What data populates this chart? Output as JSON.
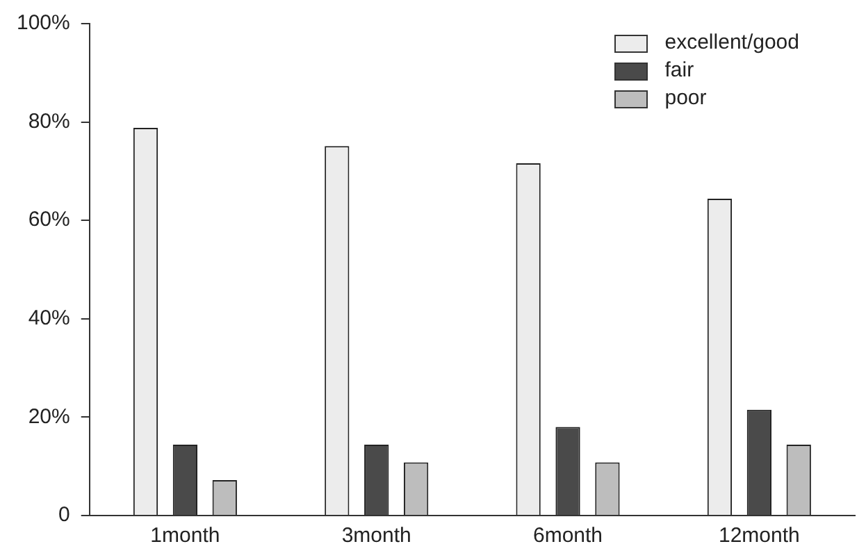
{
  "chart_data": {
    "type": "bar",
    "categories": [
      "1month",
      "3month",
      "6month",
      "12month"
    ],
    "series": [
      {
        "name": "excellent/good",
        "color": "#ececec",
        "values": [
          78.8,
          75.1,
          71.6,
          64.4
        ]
      },
      {
        "name": "fair",
        "color": "#4a4a4a",
        "values": [
          14.4,
          14.4,
          18.0,
          21.5
        ]
      },
      {
        "name": "poor",
        "color": "#bdbdbd",
        "values": [
          7.2,
          10.8,
          10.8,
          14.4
        ]
      }
    ],
    "ylim": [
      0,
      100
    ],
    "yticks": [
      0,
      {
        "value": 20,
        "label": "20%"
      },
      {
        "value": 40,
        "label": "40%"
      },
      {
        "value": 60,
        "label": "60%"
      },
      {
        "value": 80,
        "label": "80%"
      },
      {
        "value": 100,
        "label": "100%"
      }
    ],
    "grid": false,
    "legend": "top right"
  }
}
